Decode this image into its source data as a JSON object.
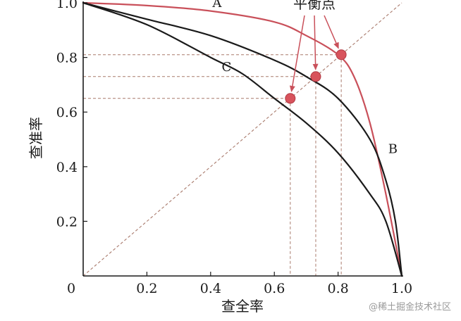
{
  "chart_data": {
    "type": "line",
    "title": "",
    "xlabel": "查全率",
    "ylabel": "查准率",
    "xlim": [
      0,
      1.0
    ],
    "ylim": [
      0,
      1.0
    ],
    "x_ticks": [
      {
        "value": 0,
        "label": "0"
      },
      {
        "value": 0.2,
        "label": "0.2"
      },
      {
        "value": 0.4,
        "label": "0.4"
      },
      {
        "value": 0.6,
        "label": "0.6"
      },
      {
        "value": 0.8,
        "label": "0.8"
      },
      {
        "value": 1.0,
        "label": "1.0"
      }
    ],
    "y_ticks": [
      {
        "value": 0.2,
        "label": "0.2"
      },
      {
        "value": 0.4,
        "label": "0.4"
      },
      {
        "value": 0.6,
        "label": "0.6"
      },
      {
        "value": 0.8,
        "label": "0.8"
      },
      {
        "value": 1.0,
        "label": "1.0"
      }
    ],
    "grid": false,
    "series": [
      {
        "name": "A",
        "color": "#c9505a",
        "x": [
          0,
          0.2,
          0.4,
          0.6,
          0.7,
          0.8,
          0.85,
          0.9,
          0.95,
          1.0
        ],
        "y": [
          1.0,
          0.99,
          0.97,
          0.93,
          0.88,
          0.81,
          0.73,
          0.56,
          0.3,
          0.0
        ]
      },
      {
        "name": "B",
        "color": "#1a1a1a",
        "x": [
          0,
          0.2,
          0.4,
          0.6,
          0.7,
          0.8,
          0.9,
          0.95,
          0.98,
          1.0
        ],
        "y": [
          1.0,
          0.94,
          0.88,
          0.79,
          0.73,
          0.65,
          0.5,
          0.35,
          0.2,
          0.0
        ]
      },
      {
        "name": "C",
        "color": "#1a1a1a",
        "x": [
          0,
          0.2,
          0.4,
          0.5,
          0.6,
          0.7,
          0.8,
          0.9,
          0.95,
          1.0
        ],
        "y": [
          1.0,
          0.92,
          0.8,
          0.74,
          0.65,
          0.56,
          0.45,
          0.3,
          0.2,
          0.0
        ]
      }
    ],
    "diagonal": {
      "x": [
        0,
        1.0
      ],
      "y": [
        0,
        1.0
      ],
      "color": "#a97a6c"
    },
    "bep_points": [
      {
        "series": "C",
        "value": 0.65
      },
      {
        "series": "B",
        "value": 0.73
      },
      {
        "series": "A",
        "value": 0.81
      }
    ],
    "curve_labels": [
      {
        "text": "A",
        "x": 0.42,
        "y": 1.0
      },
      {
        "text": "B",
        "x": 1.0,
        "y": 0.45
      },
      {
        "text": "C",
        "x": 0.45,
        "y": 0.75
      }
    ],
    "annotation": {
      "text": "平衡点",
      "color": "#c9505a"
    },
    "watermark": "@稀土掘金技术社区"
  }
}
